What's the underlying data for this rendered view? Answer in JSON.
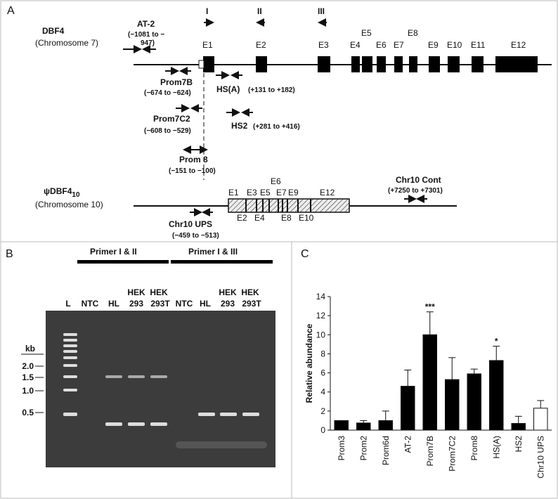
{
  "panel_a": {
    "label": "A",
    "gene": {
      "name": "DBF4",
      "chromosome": "(Chromosome 7)"
    },
    "at2": {
      "name": "AT-2",
      "range_lines": [
        "(−1081 to −",
        "947)"
      ]
    },
    "primer_sites": [
      "I",
      "II",
      "III"
    ],
    "exons": [
      "E1",
      "E2",
      "E3",
      "E4",
      "E5",
      "E6",
      "E7",
      "E8",
      "E9",
      "E10",
      "E11",
      "E12"
    ],
    "primers": [
      {
        "name": "Prom7B",
        "range": "(−674 to −624)"
      },
      {
        "name": "HS(A)",
        "range": "(+131 to +182)"
      },
      {
        "name": "Prom7C2",
        "range": "(−608 to −529)"
      },
      {
        "name": "HS2",
        "range": "(+281 to +416)"
      },
      {
        "name": "Prom 8",
        "range": "(−151 to −100)"
      }
    ],
    "pseudogene": {
      "name": "ψDBF4",
      "subscript": "10",
      "chromosome": "(Chromosome 10)",
      "exons": [
        "E1",
        "E2",
        "E3",
        "E4",
        "E5",
        "E6",
        "E7",
        "E8",
        "E9",
        "E10",
        "E12"
      ],
      "cont": {
        "name": "Chr10 Cont",
        "range": "(+7250 to +7301)"
      },
      "ups": {
        "name": "Chr10 UPS",
        "range": "(−459 to −513)"
      }
    }
  },
  "panel_b": {
    "label": "B",
    "groups": [
      "Primer I & II",
      "Primer I & III"
    ],
    "lanes": [
      "L",
      "NTC",
      "HL",
      "HEK",
      "293",
      "HEK",
      "293T",
      "NTC",
      "HL",
      "HEK",
      "293",
      "HEK",
      "293T"
    ],
    "size_unit": "kb",
    "sizes": [
      "2.0",
      "1.5",
      "1.0",
      "0.5"
    ]
  },
  "chart_data": {
    "type": "bar",
    "panel_label": "C",
    "y_label": "Relative abundance",
    "categories": [
      "Prom3",
      "Prom2",
      "Prom6d",
      "AT-2",
      "Prom7B",
      "Prom7C2",
      "Prom8",
      "HS(A)",
      "HS2",
      "Chr10 UPS"
    ],
    "values": [
      1,
      0.75,
      1,
      4.6,
      10,
      5.3,
      5.9,
      7.3,
      0.7,
      2.3
    ],
    "errors": [
      0,
      0.25,
      1,
      1.7,
      2.4,
      2.3,
      0.5,
      1.5,
      0.75,
      0.8
    ],
    "significance": [
      null,
      null,
      null,
      null,
      "***",
      null,
      null,
      "*",
      null,
      null
    ],
    "colors": [
      "#000000",
      "#000000",
      "#000000",
      "#000000",
      "#000000",
      "#000000",
      "#000000",
      "#000000",
      "#000000",
      "#ffffff"
    ],
    "ylim": [
      0,
      14
    ],
    "yticks": [
      0,
      2,
      4,
      6,
      8,
      10,
      12,
      14
    ]
  }
}
